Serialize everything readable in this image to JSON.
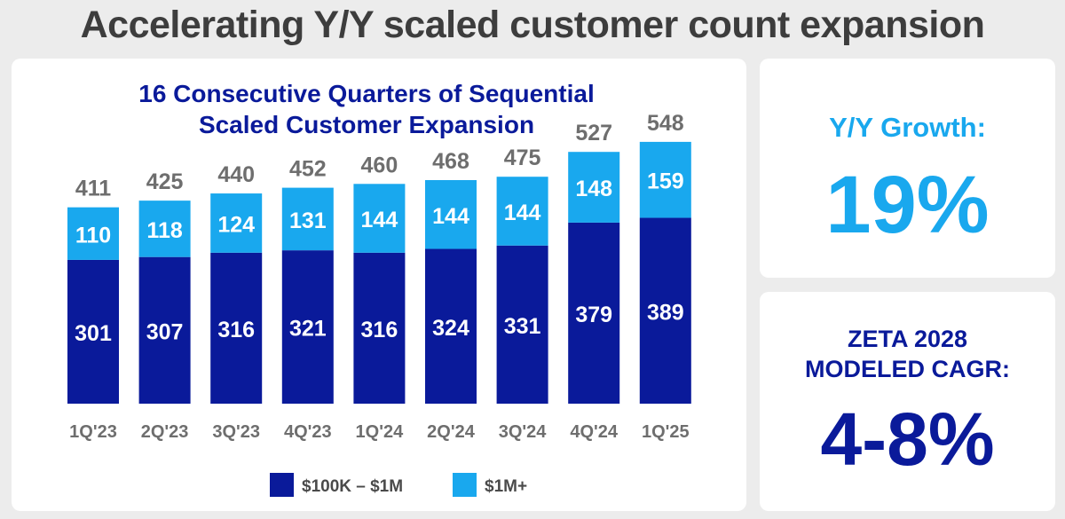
{
  "header": {
    "title": "Accelerating Y/Y scaled customer count expansion"
  },
  "stats": {
    "growth_label": "Y/Y Growth:",
    "growth_value": "19%",
    "cagr_label_line1": "ZETA 2028",
    "cagr_label_line2": "MODELED CAGR:",
    "cagr_value": "4-8%"
  },
  "colors": {
    "dark_blue": "#0a1a9a",
    "light_blue": "#19a8ee",
    "label_gray": "#6e6e6e"
  },
  "chart_data": {
    "type": "bar",
    "stacked": true,
    "title_line1": "16 Consecutive Quarters of Sequential",
    "title_line2": "Scaled Customer Expansion",
    "categories": [
      "1Q'23",
      "2Q'23",
      "3Q'23",
      "4Q'23",
      "1Q'24",
      "2Q'24",
      "3Q'24",
      "4Q'24",
      "1Q'25"
    ],
    "series": [
      {
        "name": "$100K – $1M",
        "values": [
          301,
          307,
          316,
          321,
          316,
          324,
          331,
          379,
          389
        ]
      },
      {
        "name": "$1M+",
        "values": [
          110,
          118,
          124,
          131,
          144,
          144,
          144,
          148,
          159
        ]
      }
    ],
    "totals": [
      411,
      425,
      440,
      452,
      460,
      468,
      475,
      527,
      548
    ],
    "legend_position": "bottom-center",
    "ylim": [
      0,
      560
    ]
  }
}
